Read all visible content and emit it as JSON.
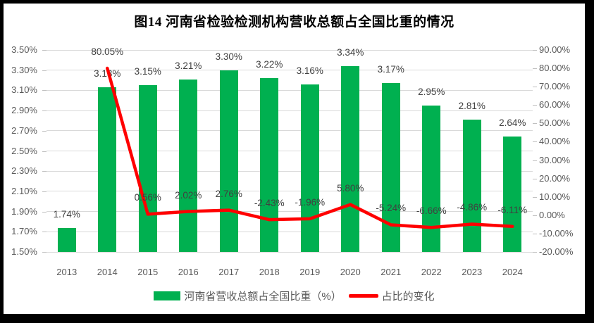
{
  "title": "图14 河南省检验检测机构营收总额占全国比重的情况",
  "colors": {
    "bar": "#00B050",
    "line": "#FF0000",
    "grid": "#D9D9D9",
    "axis_text": "#595959",
    "label_text": "#404040",
    "title_text": "#000000",
    "frame": "#000000",
    "background": "#FFFFFF"
  },
  "chart_data": {
    "type": "combo-bar-line",
    "title": "图14 河南省检验检测机构营收总额占全国比重的情况",
    "categories": [
      "2013",
      "2014",
      "2015",
      "2016",
      "2017",
      "2018",
      "2019",
      "2020",
      "2021",
      "2022",
      "2023",
      "2024"
    ],
    "series": [
      {
        "name": "河南省营收总额占全国比重（%）",
        "type": "bar",
        "axis": "left",
        "color": "#00B050",
        "values": [
          1.74,
          3.13,
          3.15,
          3.21,
          3.3,
          3.22,
          3.16,
          3.34,
          3.17,
          2.95,
          2.81,
          2.64
        ],
        "data_labels": [
          "1.74%",
          "3.13%",
          "3.15%",
          "3.21%",
          "3.30%",
          "3.22%",
          "3.16%",
          "3.34%",
          "3.17%",
          "2.95%",
          "2.81%",
          "2.64%"
        ]
      },
      {
        "name": "占比的变化",
        "type": "line",
        "axis": "right",
        "color": "#FF0000",
        "values": [
          null,
          80.05,
          0.56,
          2.02,
          2.76,
          -2.43,
          -1.96,
          5.8,
          -5.24,
          -6.66,
          -4.86,
          -6.11
        ],
        "data_labels": [
          null,
          "80.05%",
          "0.56%",
          "2.02%",
          "2.76%",
          "-2.43%",
          "-1.96%",
          "5.80%",
          "-5.24%",
          "-6.66%",
          "-4.86%",
          "-6.11%"
        ]
      }
    ],
    "left_axis": {
      "min": 1.5,
      "max": 3.5,
      "step": 0.2,
      "tick_labels": [
        "3.50%",
        "3.30%",
        "3.10%",
        "2.90%",
        "2.70%",
        "2.50%",
        "2.30%",
        "2.10%",
        "1.90%",
        "1.70%",
        "1.50%"
      ]
    },
    "right_axis": {
      "min": -20,
      "max": 90,
      "step": 10,
      "tick_labels": [
        "90.00%",
        "80.00%",
        "70.00%",
        "60.00%",
        "50.00%",
        "40.00%",
        "30.00%",
        "20.00%",
        "10.00%",
        "0.00%",
        "-10.00%",
        "-20.00%"
      ]
    },
    "grid": true,
    "legend_position": "bottom"
  }
}
